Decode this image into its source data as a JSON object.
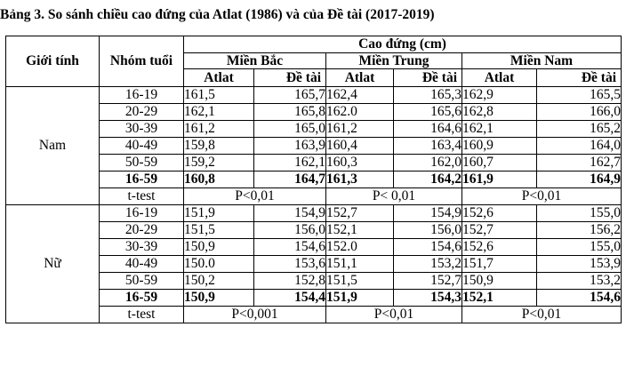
{
  "caption": "Bảng 3. So sánh chiều cao đứng của Atlat (1986) và của Đề tài (2017-2019)",
  "header": {
    "gender": "Giới tính",
    "age_group": "Nhóm tuổi",
    "height": "Cao đứng (cm)",
    "regions": [
      "Miền Bắc",
      "Miền Trung",
      "Miền Nam"
    ],
    "atlat": "Atlat",
    "de_tai": "Đề tài"
  },
  "groups": [
    {
      "gender": "Nam",
      "rows": [
        {
          "age": "16-19",
          "values": [
            "161,5",
            "165,7",
            "162,4",
            "165,3",
            "162,9",
            "165,5"
          ]
        },
        {
          "age": "20-29",
          "values": [
            "162,1",
            "165,8",
            "162.0",
            "165,6",
            "162,8",
            "166,0"
          ]
        },
        {
          "age": "30-39",
          "values": [
            "161,2",
            "165,0",
            "161,2",
            "164,6",
            "162,1",
            "165,2"
          ]
        },
        {
          "age": "40-49",
          "values": [
            "159,8",
            "163,9",
            "160,4",
            "163,4",
            "160,9",
            "164,0"
          ]
        },
        {
          "age": "50-59",
          "values": [
            "159,2",
            "162,1",
            "160,3",
            "162,0",
            "160,7",
            "162,7"
          ]
        },
        {
          "age": "16-59",
          "values": [
            "160,8",
            "164,7",
            "161,3",
            "164,2",
            "161,9",
            "164,9"
          ]
        }
      ],
      "ttest_label": "t-test",
      "ttest": [
        "P<0,01",
        "P< 0,01",
        "P<0,01"
      ]
    },
    {
      "gender": "Nữ",
      "rows": [
        {
          "age": "16-19",
          "values": [
            "151,9",
            "154,9",
            "152,7",
            "154,9",
            "152,6",
            "155,0"
          ]
        },
        {
          "age": "20-29",
          "values": [
            "151,5",
            "156,0",
            "152,1",
            "156,0",
            "152,7",
            "156,2"
          ]
        },
        {
          "age": "30-39",
          "values": [
            "150,9",
            "154,6",
            "152.0",
            "154,6",
            "152,6",
            "155,0"
          ]
        },
        {
          "age": "40-49",
          "values": [
            "150.0",
            "153,6",
            "151,1",
            "153,2",
            "151,7",
            "153,9"
          ]
        },
        {
          "age": "50-59",
          "values": [
            "150,2",
            "152,8",
            "151,5",
            "152,7",
            "150,9",
            "153,2"
          ]
        },
        {
          "age": "16-59",
          "values": [
            "150,9",
            "154,4",
            "151,9",
            "154,3",
            "152,1",
            "154,6"
          ]
        }
      ],
      "ttest_label": "t-test",
      "ttest": [
        "P<0,001",
        "P<0,01",
        "P<0,01"
      ]
    }
  ]
}
